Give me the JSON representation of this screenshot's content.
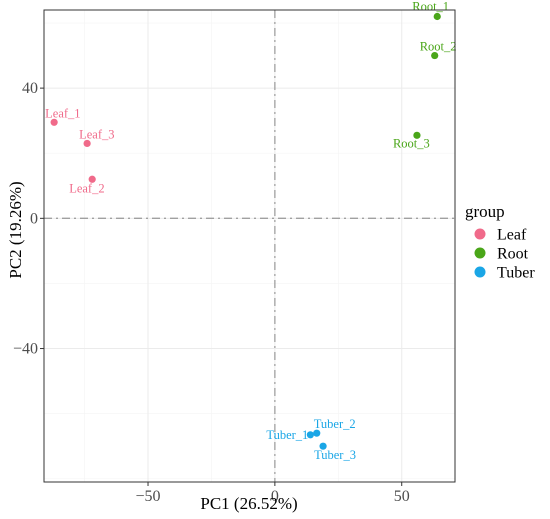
{
  "chart_data": {
    "type": "scatter",
    "title": "",
    "xlabel": "PC1 (26.52%)",
    "ylabel": "PC2 (19.26%)",
    "xlim": [
      -91,
      71
    ],
    "ylim": [
      -81,
      64
    ],
    "xticks": [
      -50,
      0,
      50
    ],
    "yticks": [
      -40,
      0,
      40
    ],
    "xtick_labels": [
      "−50",
      "0",
      "50"
    ],
    "ytick_labels": [
      "−40",
      "0",
      "40"
    ],
    "grid": true,
    "zero_lines": true,
    "legend": {
      "title": "group",
      "position": "right",
      "entries": [
        {
          "label": "Leaf",
          "color": "#f06a8a"
        },
        {
          "label": "Root",
          "color": "#4aa619"
        },
        {
          "label": "Tuber",
          "color": "#1aa6e6"
        }
      ]
    },
    "series": [
      {
        "name": "Leaf",
        "color": "#f06a8a",
        "points": [
          {
            "label": "Leaf_1",
            "x": -87,
            "y": 29.5
          },
          {
            "label": "Leaf_3",
            "x": -74,
            "y": 23
          },
          {
            "label": "Leaf_2",
            "x": -72,
            "y": 12
          }
        ]
      },
      {
        "name": "Root",
        "color": "#4aa619",
        "points": [
          {
            "label": "Root_1",
            "x": 64,
            "y": 62
          },
          {
            "label": "Root_2",
            "x": 63,
            "y": 50
          },
          {
            "label": "Root_3",
            "x": 56,
            "y": 25.5
          }
        ]
      },
      {
        "name": "Tuber",
        "color": "#1aa6e6",
        "points": [
          {
            "label": "Tuber_1",
            "x": 14,
            "y": -66.5
          },
          {
            "label": "Tuber_2",
            "x": 16.5,
            "y": -66
          },
          {
            "label": "Tuber_3",
            "x": 19,
            "y": -70
          }
        ]
      }
    ]
  }
}
